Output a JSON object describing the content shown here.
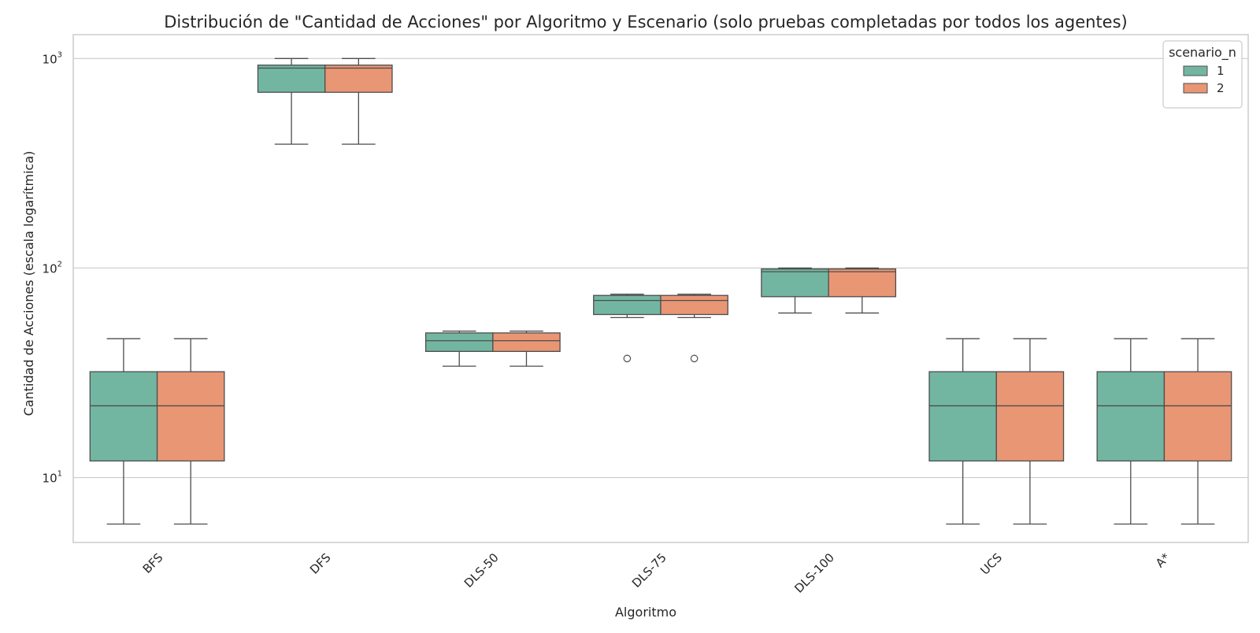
{
  "chart_data": {
    "type": "box",
    "title": "Distribución de \"Cantidad de Acciones\" por Algoritmo y Escenario (solo pruebas completadas por todos los agentes)",
    "xlabel": "Algoritmo",
    "ylabel": "Cantidad de Acciones (escala logarítmica)",
    "yscale": "log",
    "ylim": [
      4.9,
      1300
    ],
    "y_ticks": [
      {
        "value": 10,
        "base": "10",
        "exp": "1"
      },
      {
        "value": 100,
        "base": "10",
        "exp": "2"
      },
      {
        "value": 1000,
        "base": "10",
        "exp": "3"
      }
    ],
    "grid": true,
    "legend": {
      "title": "scenario_n",
      "position": "top-right"
    },
    "categories": [
      "BFS",
      "DFS",
      "DLS-50",
      "DLS-75",
      "DLS-100",
      "UCS",
      "A*"
    ],
    "series": [
      {
        "name": "1",
        "color": "#72b6a1",
        "boxes": [
          {
            "whislo": 6,
            "q1": 12,
            "med": 22,
            "q3": 32,
            "whishi": 46,
            "fliers": []
          },
          {
            "whislo": 390,
            "q1": 690,
            "med": 900,
            "q3": 930,
            "whishi": 1000,
            "fliers": []
          },
          {
            "whislo": 34,
            "q1": 40,
            "med": 45,
            "q3": 49,
            "whishi": 50,
            "fliers": []
          },
          {
            "whislo": 58,
            "q1": 60,
            "med": 70,
            "q3": 74,
            "whishi": 75,
            "fliers": [
              37
            ]
          },
          {
            "whislo": 61,
            "q1": 73,
            "med": 96,
            "q3": 99,
            "whishi": 100,
            "fliers": []
          },
          {
            "whislo": 6,
            "q1": 12,
            "med": 22,
            "q3": 32,
            "whishi": 46,
            "fliers": []
          },
          {
            "whislo": 6,
            "q1": 12,
            "med": 22,
            "q3": 32,
            "whishi": 46,
            "fliers": []
          }
        ]
      },
      {
        "name": "2",
        "color": "#e99675",
        "boxes": [
          {
            "whislo": 6,
            "q1": 12,
            "med": 22,
            "q3": 32,
            "whishi": 46,
            "fliers": []
          },
          {
            "whislo": 390,
            "q1": 690,
            "med": 900,
            "q3": 930,
            "whishi": 1000,
            "fliers": []
          },
          {
            "whislo": 34,
            "q1": 40,
            "med": 45,
            "q3": 49,
            "whishi": 50,
            "fliers": []
          },
          {
            "whislo": 58,
            "q1": 60,
            "med": 70,
            "q3": 74,
            "whishi": 75,
            "fliers": [
              37
            ]
          },
          {
            "whislo": 61,
            "q1": 73,
            "med": 96,
            "q3": 99,
            "whishi": 100,
            "fliers": []
          },
          {
            "whislo": 6,
            "q1": 12,
            "med": 22,
            "q3": 32,
            "whishi": 46,
            "fliers": []
          },
          {
            "whislo": 6,
            "q1": 12,
            "med": 22,
            "q3": 32,
            "whishi": 46,
            "fliers": []
          }
        ]
      }
    ]
  }
}
